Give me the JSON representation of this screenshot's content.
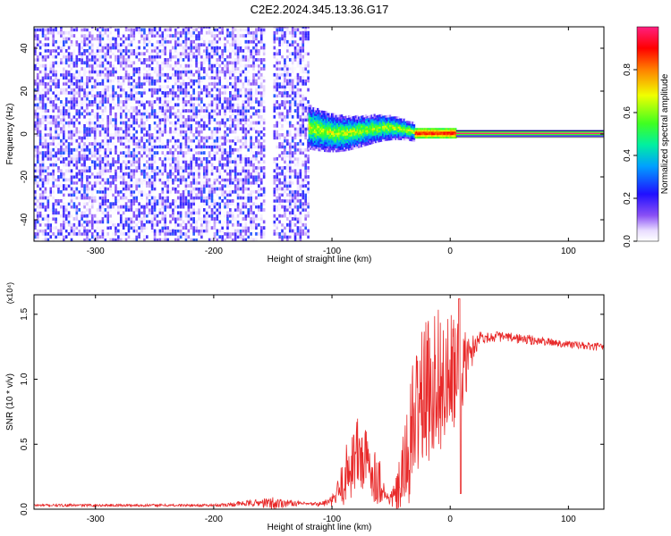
{
  "title": "C2E2.2024.345.13.36.G17",
  "colors": {
    "spectrogram_low": "#6a2cf0",
    "spectrogram_mid": "#19e38a",
    "spectrogram_high": "#ff1a1a",
    "snr_line": "#e82a2a",
    "axis": "#000000"
  },
  "chart_data": [
    {
      "type": "heatmap",
      "name": "spectrogram",
      "xlabel": "Height of straight line (km)",
      "ylabel": "Frequency (Hz)",
      "xlim": [
        -352,
        130
      ],
      "ylim": [
        -50,
        50
      ],
      "x_ticks": [
        -300,
        -200,
        -100,
        0,
        100
      ],
      "y_ticks": [
        -40,
        -20,
        0,
        20,
        40
      ],
      "colorbar": {
        "label": "Normalized spectral amplitude",
        "range": [
          0,
          1
        ],
        "ticks": [
          0.0,
          0.2,
          0.4,
          0.6,
          0.8
        ],
        "tick_labels": [
          "0.0",
          "0.2",
          "0.4",
          "0.6",
          "0.8"
        ],
        "colormap": "rainbow (white-violet-blue-cyan-green-yellow-red-magenta)"
      },
      "regions": [
        {
          "x_range": [
            -352,
            -120
          ],
          "freq_range": [
            -50,
            50
          ],
          "amplitude": 0.15,
          "pattern": "broadband noise"
        },
        {
          "x_range": [
            -120,
            -30
          ],
          "freq_center": 3,
          "freq_halfwidth": 10,
          "amplitude": 0.4,
          "pattern": "converging signal"
        },
        {
          "x_range": [
            -30,
            5
          ],
          "freq_center": 0,
          "freq_halfwidth": 2,
          "amplitude": 0.9,
          "pattern": "narrow line"
        },
        {
          "x_range": [
            5,
            130
          ],
          "freq_center": 0,
          "freq_halfwidth": 1,
          "amplitude": 1.0,
          "pattern": "continuous tone"
        }
      ]
    },
    {
      "type": "line",
      "name": "snr",
      "xlabel": "Height of straight line (km)",
      "ylabel": "SNR (10 * v/v)",
      "y_scale_label": "(x10⁴)",
      "xlim": [
        -352,
        130
      ],
      "ylim": [
        0,
        1.65
      ],
      "x_ticks": [
        -300,
        -200,
        -100,
        0,
        100
      ],
      "y_ticks": [
        0.0,
        0.5,
        1.0,
        1.5
      ],
      "y_tick_labels": [
        "0.0",
        "0.5",
        "1.0",
        "1.5"
      ],
      "series": [
        {
          "x": [
            -352,
            -300,
            -250,
            -200,
            -160,
            -150,
            -140,
            -120,
            -110,
            -100,
            -95,
            -90,
            -85,
            -80,
            -75,
            -70,
            -65,
            -60,
            -57,
            -55,
            -50,
            -45,
            -40,
            -35,
            -30,
            -25,
            -20,
            -15,
            -10,
            -5,
            0,
            5,
            8,
            10,
            15,
            20,
            25,
            30,
            40,
            50,
            60,
            70,
            80,
            90,
            100,
            110,
            120,
            130
          ],
          "y": [
            0.03,
            0.03,
            0.03,
            0.03,
            0.05,
            0.04,
            0.05,
            0.04,
            0.04,
            0.06,
            0.12,
            0.22,
            0.33,
            0.42,
            0.4,
            0.35,
            0.28,
            0.22,
            0.18,
            0.1,
            0.08,
            0.12,
            0.25,
            0.45,
            0.7,
            0.85,
            0.9,
            0.95,
            1.05,
            0.9,
            1.0,
            1.05,
            0.9,
            1.05,
            1.15,
            1.25,
            1.33,
            1.32,
            1.33,
            1.32,
            1.31,
            1.3,
            1.29,
            1.28,
            1.27,
            1.26,
            1.25,
            1.25
          ],
          "noise_amplitude": [
            0.01,
            0.01,
            0.01,
            0.01,
            0.03,
            0.06,
            0.03,
            0.01,
            0.02,
            0.04,
            0.12,
            0.2,
            0.28,
            0.32,
            0.3,
            0.26,
            0.22,
            0.2,
            0.12,
            0.05,
            0.06,
            0.15,
            0.3,
            0.45,
            0.55,
            0.55,
            0.55,
            0.6,
            0.55,
            0.55,
            0.5,
            0.45,
            0.5,
            0.35,
            0.2,
            0.1,
            0.05,
            0.04,
            0.04,
            0.04,
            0.04,
            0.04,
            0.03,
            0.03,
            0.03,
            0.03,
            0.03,
            0.03
          ]
        }
      ]
    }
  ],
  "labels": {
    "top_xlabel": "Height of straight line (km)",
    "top_ylabel": "Frequency (Hz)",
    "bottom_xlabel": "Height of straight line (km)",
    "bottom_ylabel": "SNR (10 * v/v)",
    "bottom_scale": "(x10⁴)",
    "colorbar_label": "Normalized spectral amplitude"
  },
  "tick_labels": {
    "x": [
      "-300",
      "-200",
      "-100",
      "0",
      "100"
    ],
    "top_y": [
      "-40",
      "-20",
      "0",
      "20",
      "40"
    ],
    "bottom_y": [
      "0.0",
      "0.5",
      "1.0",
      "1.5"
    ],
    "cbar": [
      "0.0",
      "0.2",
      "0.4",
      "0.6",
      "0.8"
    ]
  }
}
